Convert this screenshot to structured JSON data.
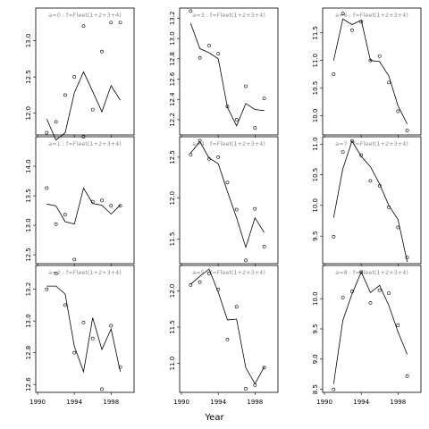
{
  "chart_data": {
    "type": "line",
    "xlabel": "Year",
    "x_ticks": [
      1990,
      1994,
      1998
    ],
    "x_tick_labels": [
      "1990",
      "1994",
      "1998"
    ],
    "xlim": [
      1989.8,
      2000.5
    ],
    "years": [
      1991,
      1992,
      1993,
      1994,
      1995,
      1996,
      1997,
      1998,
      1999
    ],
    "panels": [
      {
        "title": "a=0  :  f=Fleet(1+2+3+4)",
        "ylim": [
          11.7,
          13.45
        ],
        "y_ticks": [
          12.0,
          12.5,
          13.0
        ],
        "y_tick_labels": [
          "12.0",
          "12.5",
          "13.0"
        ],
        "fitted": [
          11.92,
          11.63,
          11.73,
          12.28,
          12.57,
          12.3,
          12.02,
          12.38,
          12.18
        ],
        "observed": [
          11.73,
          11.88,
          12.25,
          12.5,
          13.2,
          12.05,
          12.85,
          13.25,
          13.25
        ]
      },
      {
        "title": "a=3  :  f=Fleet(1+2+3+4)",
        "ylim": [
          12.05,
          13.3
        ],
        "y_ticks": [
          12.2,
          12.4,
          12.6,
          12.8,
          13.0,
          13.2
        ],
        "y_tick_labels": [
          "12.2",
          "12.4",
          "12.6",
          "12.8",
          "13.0",
          "13.2"
        ],
        "fitted": [
          13.15,
          12.9,
          12.86,
          12.8,
          12.32,
          12.14,
          12.36,
          12.3,
          12.29
        ],
        "observed": [
          13.27,
          12.81,
          12.93,
          12.85,
          12.33,
          12.2,
          12.53,
          12.12,
          12.41
        ]
      },
      {
        "title": "a=6  :  f=Fleet(1+2+3+4)",
        "ylim": [
          9.65,
          11.95
        ],
        "y_ticks": [
          10.0,
          10.5,
          11.0,
          11.5
        ],
        "y_tick_labels": [
          "10.0",
          "10.5",
          "11.0",
          "11.5"
        ],
        "fitted": [
          11.0,
          11.75,
          11.65,
          11.73,
          11.0,
          10.98,
          10.72,
          10.18,
          9.85
        ],
        "observed": [
          10.75,
          11.85,
          11.55,
          11.7,
          11.0,
          11.08,
          10.6,
          10.08,
          9.73
        ]
      },
      {
        "title": "a=1  :  f=Fleet(1+2+3+4)",
        "ylim": [
          12.35,
          14.5
        ],
        "y_ticks": [
          12.5,
          13.0,
          13.5,
          14.0
        ],
        "y_tick_labels": [
          "12.5",
          "13.0",
          "13.5",
          "14.0"
        ],
        "fitted": [
          13.36,
          13.33,
          13.06,
          13.02,
          13.63,
          13.37,
          13.34,
          13.19,
          13.34
        ],
        "observed": [
          13.63,
          13.02,
          13.18,
          12.42,
          14.5,
          13.4,
          13.42,
          13.33,
          13.33
        ]
      },
      {
        "title": "a=4  :  f=Fleet(1+2+3+4)",
        "ylim": [
          11.2,
          12.75
        ],
        "y_ticks": [
          11.5,
          12.0,
          12.5
        ],
        "y_tick_labels": [
          "11.5",
          "12.0",
          "12.5"
        ],
        "fitted": [
          12.55,
          12.69,
          12.49,
          12.42,
          12.08,
          11.76,
          11.4,
          11.76,
          11.58
        ],
        "observed": [
          12.53,
          12.7,
          12.48,
          12.5,
          12.19,
          11.86,
          11.24,
          11.87,
          11.41
        ]
      },
      {
        "title": "a=7  :  f=Fleet(1+2+3+4)",
        "ylim": [
          9.05,
          11.12
        ],
        "y_ticks": [
          9.5,
          10.0,
          10.5,
          11.0
        ],
        "y_tick_labels": [
          "9.5",
          "10.0",
          "10.5",
          "11.0"
        ],
        "fitted": [
          9.8,
          10.6,
          11.05,
          10.8,
          10.63,
          10.35,
          10.0,
          9.77,
          9.08
        ],
        "observed": [
          9.49,
          10.87,
          11.05,
          10.82,
          10.4,
          10.32,
          9.97,
          9.64,
          9.15
        ]
      },
      {
        "title": "a=2  :  f=Fleet(1+2+3+4)",
        "ylim": [
          12.55,
          13.35
        ],
        "y_ticks": [
          12.6,
          12.8,
          13.0,
          13.2
        ],
        "y_tick_labels": [
          "12.6",
          "12.8",
          "13.0",
          "13.2"
        ],
        "fitted": [
          13.22,
          13.22,
          13.17,
          12.84,
          12.68,
          13.02,
          12.82,
          12.95,
          12.68
        ],
        "observed": [
          13.2,
          13.3,
          13.1,
          12.8,
          12.99,
          12.89,
          12.57,
          12.97,
          12.71
        ]
      },
      {
        "title": "a=5  :  f=Fleet(1+2+3+4)",
        "ylim": [
          10.6,
          12.35
        ],
        "y_ticks": [
          11.0,
          11.5,
          12.0
        ],
        "y_tick_labels": [
          "11.0",
          "11.5",
          "12.0"
        ],
        "fitted": [
          12.09,
          12.2,
          12.3,
          11.98,
          11.6,
          11.61,
          10.94,
          10.72,
          10.95
        ],
        "observed": [
          12.08,
          12.12,
          12.24,
          12.02,
          11.33,
          11.78,
          10.65,
          10.7,
          10.94
        ]
      },
      {
        "title": "a=8  :  f=Fleet(1+2+3+4)",
        "ylim": [
          8.45,
          10.55
        ],
        "y_ticks": [
          8.5,
          9.0,
          9.5,
          10.0
        ],
        "y_tick_labels": [
          "8.5",
          "9.0",
          "9.5",
          "10.0"
        ],
        "fitted": [
          8.59,
          9.64,
          10.08,
          10.44,
          10.1,
          10.22,
          9.89,
          9.45,
          9.08
        ],
        "observed": [
          8.5,
          10.02,
          10.12,
          10.44,
          9.93,
          10.14,
          10.09,
          9.56,
          8.72
        ]
      }
    ]
  }
}
